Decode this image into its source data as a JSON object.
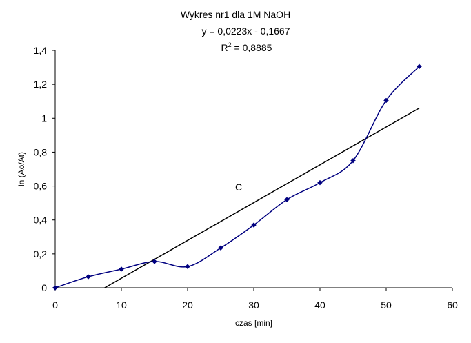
{
  "title": {
    "underlined": "Wykres nr1",
    "rest": " dla 1M NaOH"
  },
  "equation": "y = 0,0223x - 0,1667",
  "r2": {
    "prefix": "R",
    "sup": "2",
    "value": " = 0,8885"
  },
  "chart_data": {
    "type": "scatter",
    "xlabel": "czas [min]",
    "ylabel": "ln (Ao/At)",
    "xlim": [
      0,
      60
    ],
    "ylim": [
      0,
      1.4
    ],
    "x_ticks": [
      "0",
      "10",
      "20",
      "30",
      "40",
      "50",
      "60"
    ],
    "y_ticks": [
      "0",
      "0,2",
      "0,4",
      "0,6",
      "0,8",
      "1",
      "1,2",
      "1,4"
    ],
    "grid": false,
    "legend": "none",
    "series": [
      {
        "color": "#000080",
        "style": "smoothed line with diamond markers",
        "points": [
          {
            "x": 0,
            "y": 0.0
          },
          {
            "x": 5,
            "y": 0.065
          },
          {
            "x": 10,
            "y": 0.11
          },
          {
            "x": 15,
            "y": 0.155
          },
          {
            "x": 20,
            "y": 0.125
          },
          {
            "x": 25,
            "y": 0.235
          },
          {
            "x": 30,
            "y": 0.37
          },
          {
            "x": 35,
            "y": 0.52
          },
          {
            "x": 40,
            "y": 0.62
          },
          {
            "x": 45,
            "y": 0.75
          },
          {
            "x": 50,
            "y": 1.105
          },
          {
            "x": 55,
            "y": 1.305
          }
        ]
      }
    ],
    "trendline": {
      "slope": 0.0223,
      "intercept": -0.1667,
      "x_range": [
        0,
        55
      ],
      "color": "#000000"
    },
    "annotations": [
      {
        "text": "C"
      }
    ]
  }
}
